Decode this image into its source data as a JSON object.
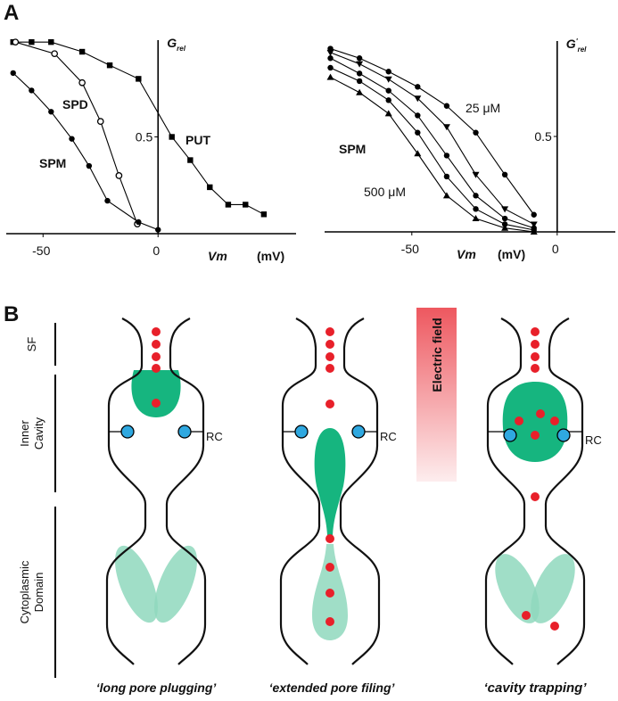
{
  "panel_a": {
    "label": "A"
  },
  "chart_data": [
    {
      "type": "line",
      "xlabel": "Vm",
      "xlabel_unit": "(mV)",
      "ylabel": "G",
      "ylabel_sub": "rel",
      "xlim": [
        -66,
        60
      ],
      "ylim": [
        0,
        1
      ],
      "xticks": [
        -50,
        0
      ],
      "yticks": [
        0.5
      ],
      "series": [
        {
          "name": "PUT",
          "color": "#000000",
          "marker": "square",
          "x": [
            -63,
            -55,
            -46.5,
            -33,
            -21,
            -8.5,
            6,
            14,
            22.5,
            30.5,
            38,
            46
          ],
          "values": [
            0.99,
            0.99,
            0.99,
            0.94,
            0.87,
            0.8,
            0.5,
            0.38,
            0.24,
            0.15,
            0.15,
            0.1
          ]
        },
        {
          "name": "SPD",
          "color": "#000000",
          "marker": "open-circle",
          "x": [
            -62,
            -45,
            -33,
            -25,
            -17,
            -9
          ],
          "values": [
            0.99,
            0.93,
            0.78,
            0.58,
            0.3,
            0.05
          ]
        },
        {
          "name": "SPM",
          "color": "#000000",
          "marker": "circle",
          "x": [
            -63,
            -55,
            -46.5,
            -37.5,
            -30,
            -22,
            -8.5,
            0
          ],
          "values": [
            0.83,
            0.74,
            0.63,
            0.49,
            0.35,
            0.17,
            0.06,
            0.02
          ]
        }
      ]
    },
    {
      "type": "line",
      "xlabel": "Vm",
      "xlabel_unit": "(mV)",
      "ylabel": "G",
      "ylabel_sup": "'",
      "ylabel_sub": "rel",
      "xlim": [
        -80,
        20
      ],
      "ylim": [
        0,
        1
      ],
      "xticks": [
        -50,
        0
      ],
      "yticks": [
        0.5
      ],
      "annotations": [
        "SPM",
        "25 μM",
        "500 μM"
      ],
      "x": [
        -78,
        -68,
        -58,
        -48,
        -38,
        -28,
        -18,
        -8
      ],
      "series": [
        {
          "color": "#000000",
          "marker": "circle",
          "values": [
            0.96,
            0.91,
            0.84,
            0.76,
            0.66,
            0.52,
            0.3,
            0.09
          ]
        },
        {
          "color": "#000000",
          "marker": "triangle-down",
          "values": [
            0.94,
            0.88,
            0.8,
            0.7,
            0.55,
            0.3,
            0.12,
            0.04
          ]
        },
        {
          "color": "#000000",
          "marker": "circle",
          "values": [
            0.91,
            0.83,
            0.74,
            0.61,
            0.4,
            0.19,
            0.07,
            0.02
          ]
        },
        {
          "color": "#000000",
          "marker": "circle",
          "values": [
            0.86,
            0.79,
            0.69,
            0.52,
            0.29,
            0.12,
            0.04,
            0.01
          ]
        },
        {
          "color": "#000000",
          "marker": "triangle",
          "values": [
            0.81,
            0.73,
            0.62,
            0.41,
            0.19,
            0.07,
            0.02,
            0.0
          ]
        }
      ]
    }
  ],
  "panel_b": {
    "label": "B",
    "sf": "SF",
    "inner_cavity": [
      "Inner",
      "Cavity"
    ],
    "cytoplasmic_domain": [
      "Cytoplasmic",
      "Domain"
    ],
    "electric_field": "Electric field",
    "channels": [
      {
        "rc": "RC",
        "caption": "‘long pore plugging’"
      },
      {
        "rc": "RC",
        "caption": "‘extended pore filing’"
      },
      {
        "rc": "RC",
        "caption": "‘cavity trapping’"
      }
    ]
  }
}
